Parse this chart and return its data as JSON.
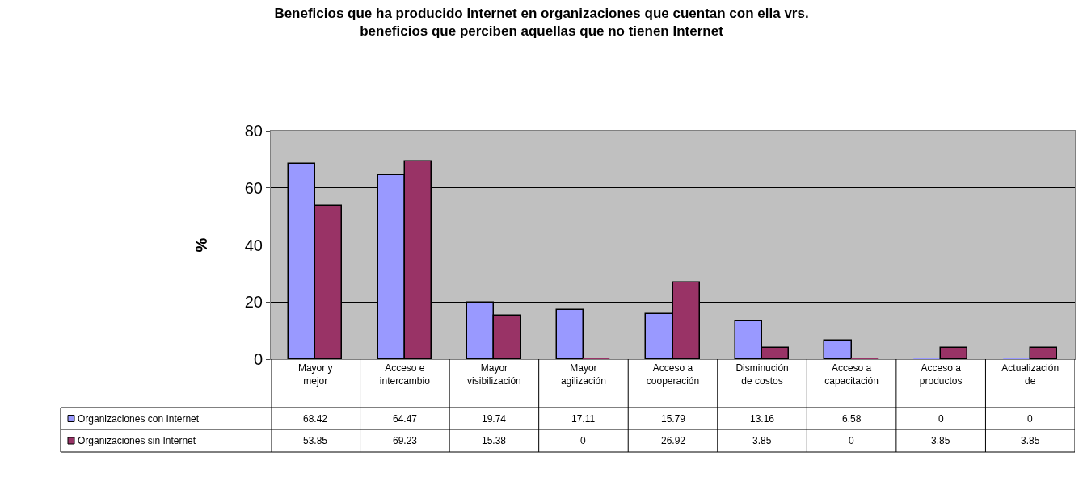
{
  "chart_data": {
    "type": "bar",
    "title": "Beneficios que ha producido Internet en organizaciones que cuentan con ella vrs.\nbeneficios que perciben aquellas que no tienen Internet",
    "ylabel": "%",
    "categories": [
      "Mayor y mejor",
      "Acceso e intercambio",
      "Mayor visibilización",
      "Mayor agilización",
      "Acceso a cooperación",
      "Disminución de costos",
      "Acceso a capacitación",
      "Acceso a productos",
      "Actualización de"
    ],
    "series": [
      {
        "name": "Organizaciones con Internet",
        "color": "#9999ff",
        "values": [
          68.42,
          64.47,
          19.74,
          17.11,
          15.79,
          13.16,
          6.58,
          0,
          0
        ]
      },
      {
        "name": "Organizaciones sin Internet",
        "color": "#993366",
        "values": [
          53.85,
          69.23,
          15.38,
          0,
          26.92,
          3.85,
          0,
          3.85,
          3.85
        ]
      }
    ],
    "ylim": [
      0,
      80
    ],
    "yticks": [
      0,
      20,
      40,
      60,
      80
    ],
    "grid": "y",
    "data_labels": true,
    "legend": "bottom left"
  }
}
